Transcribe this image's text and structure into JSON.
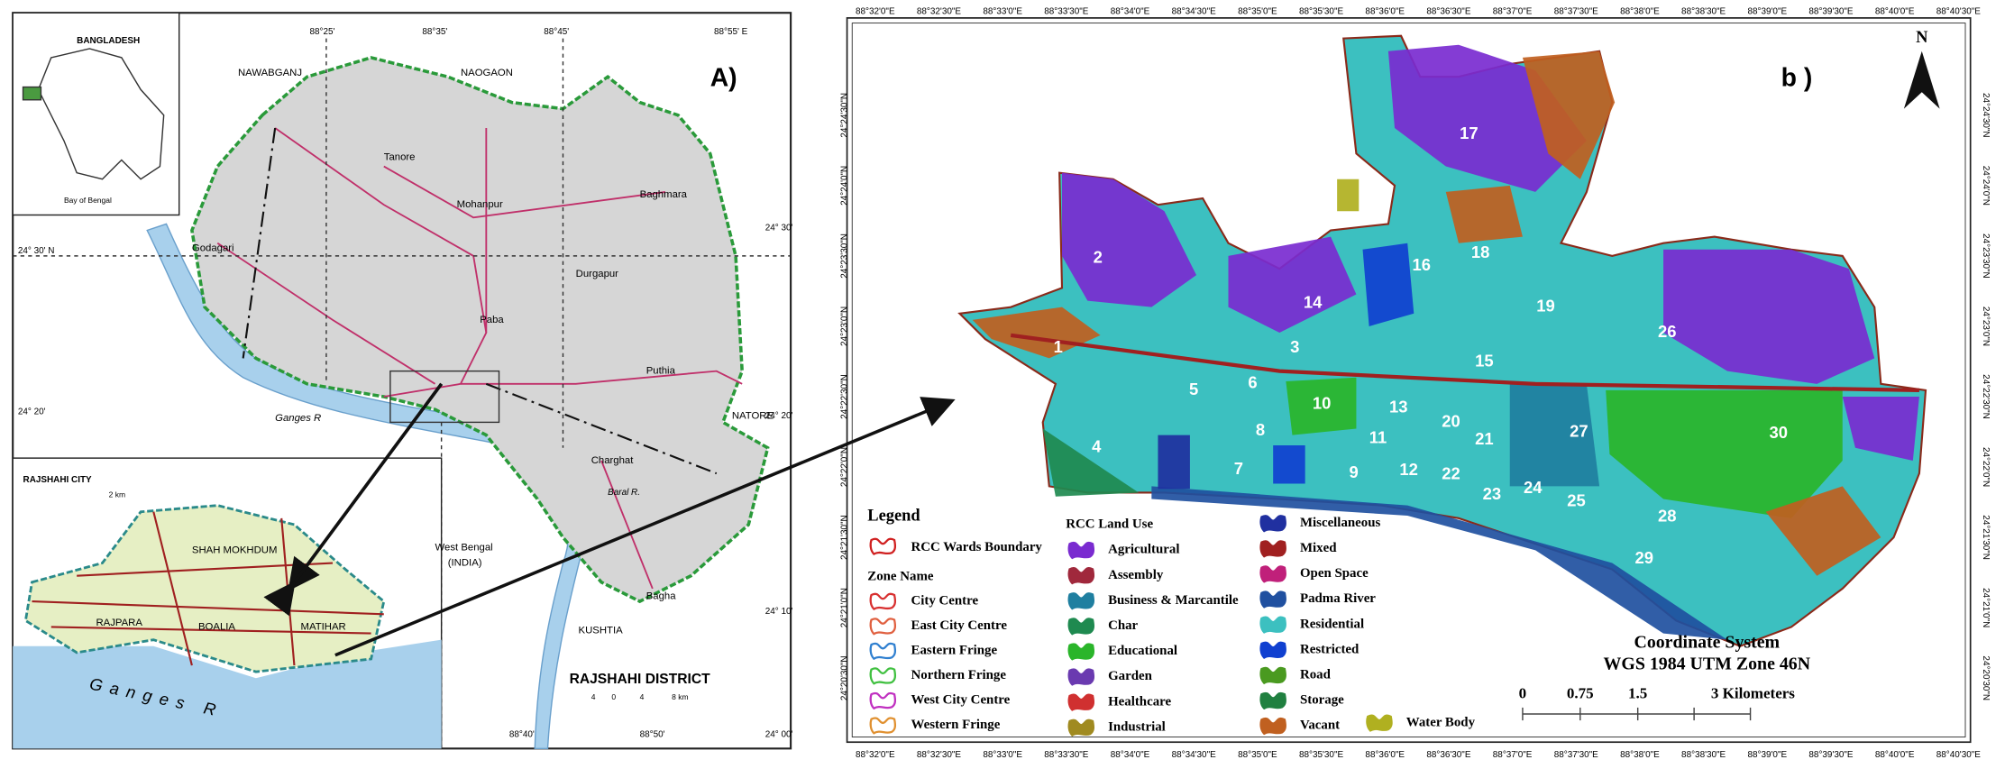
{
  "panel_a": {
    "label": "A)",
    "inset": {
      "country": "BANGLADESH",
      "sea": "Bay of Bengal"
    },
    "grid_labels": [
      "88°25'",
      "88°35'",
      "88°45'",
      "88°55' E",
      "24° 30' N",
      "24° 30'",
      "24° 20'",
      "24° 20'",
      "24° 10'",
      "24° 00'",
      "88°40'",
      "88°50'"
    ],
    "places": [
      "NAWABGANJ",
      "NAOGAON",
      "Tanore",
      "Mohanpur",
      "Baghmara",
      "Godagari",
      "Paba",
      "Durgapur",
      "Puthia",
      "Charghat",
      "Bagha",
      "NATORE",
      "West Bengal",
      "(INDIA)",
      "KUSHTIA"
    ],
    "rivers": [
      "Ganges R",
      "Baral R."
    ],
    "title": "RAJSHAHI DISTRICT",
    "scale": [
      "4",
      "0",
      "4",
      "8 km"
    ],
    "city_inset": {
      "title": "RAJSHAHI CITY",
      "scale": "2 km",
      "areas": [
        "SHAH MOKHDUM",
        "RAJPARA",
        "BOALIA",
        "MATIHAR"
      ],
      "river": "Ganges R"
    }
  },
  "panel_b": {
    "label": "b )",
    "north": "N",
    "x_labels": [
      "88°32'0\"E",
      "88°32'30\"E",
      "88°33'0\"E",
      "88°33'30\"E",
      "88°34'0\"E",
      "88°34'30\"E",
      "88°35'0\"E",
      "88°35'30\"E",
      "88°36'0\"E",
      "88°36'30\"E",
      "88°37'0\"E",
      "88°37'30\"E",
      "88°38'0\"E",
      "88°38'30\"E",
      "88°39'0\"E",
      "88°39'30\"E",
      "88°40'0\"E",
      "88°40'30\"E"
    ],
    "y_labels": [
      "24°24'30\"N",
      "24°24'0\"N",
      "24°23'30\"N",
      "24°23'0\"N",
      "24°22'30\"N",
      "24°22'0\"N",
      "24°21'30\"N",
      "24°21'0\"N",
      "24°20'30\"N"
    ],
    "wards": [
      "1",
      "2",
      "3",
      "4",
      "5",
      "6",
      "7",
      "8",
      "9",
      "10",
      "11",
      "12",
      "13",
      "14",
      "15",
      "16",
      "17",
      "18",
      "19",
      "20",
      "21",
      "22",
      "23",
      "24",
      "25",
      "26",
      "27",
      "28",
      "29",
      "30"
    ],
    "legend": {
      "title": "Legend",
      "boundary": "RCC Wards Boundary",
      "boundary_color": "#d02020",
      "zone_title": "Zone Name",
      "zones": [
        {
          "name": "City Centre",
          "color": "#d83030"
        },
        {
          "name": "East City Centre",
          "color": "#e06040"
        },
        {
          "name": "Eastern Fringe",
          "color": "#3080d0"
        },
        {
          "name": "Northern Fringe",
          "color": "#40c040"
        },
        {
          "name": "West City Centre",
          "color": "#c030c0"
        },
        {
          "name": "Western Fringe",
          "color": "#e09030"
        }
      ],
      "land_use_title": "RCC Land Use",
      "land_use": [
        {
          "name": "Agricultural",
          "color": "#7a2bd0"
        },
        {
          "name": "Assembly",
          "color": "#a0283c"
        },
        {
          "name": "Business & Marcantile",
          "color": "#1f7fa0"
        },
        {
          "name": "Char",
          "color": "#1f8a50"
        },
        {
          "name": "Educational",
          "color": "#2ab52a"
        },
        {
          "name": "Garden",
          "color": "#6a3ab0"
        },
        {
          "name": "Healthcare",
          "color": "#d03030"
        },
        {
          "name": "Industrial",
          "color": "#a08a20"
        },
        {
          "name": "Miscellaneous",
          "color": "#2030a0"
        },
        {
          "name": "Mixed",
          "color": "#a02020"
        },
        {
          "name": "Open Space",
          "color": "#c0207a"
        },
        {
          "name": "Padma River",
          "color": "#2050a0"
        },
        {
          "name": "Residential",
          "color": "#3cc0c0"
        },
        {
          "name": "Restricted",
          "color": "#1040d0"
        },
        {
          "name": "Road",
          "color": "#4a9a20"
        },
        {
          "name": "Storage",
          "color": "#208040"
        },
        {
          "name": "Vacant",
          "color": "#c06020"
        },
        {
          "name": "Water Body",
          "color": "#b0b020"
        }
      ]
    },
    "coordinate_system": {
      "title": "Coordinate System",
      "name": "WGS 1984 UTM Zone 46N"
    },
    "scale_labels": [
      "0",
      "0.75",
      "1.5",
      "3 Kilometers"
    ]
  }
}
